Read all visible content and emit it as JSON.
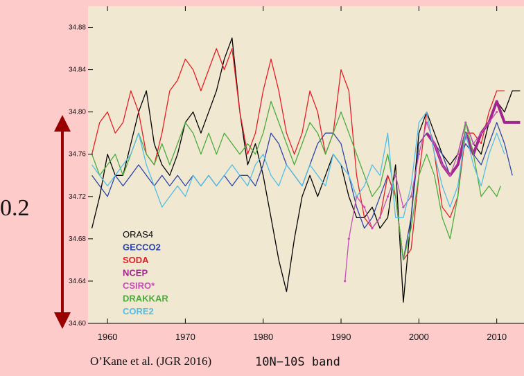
{
  "scale_label": "0.2",
  "citation": "O’Kane et al. (JGR 2016)",
  "band_label": "10N−10S band",
  "colors": {
    "page_bg": "#fecbcb",
    "plot_bg": "#f1e8d1",
    "arrow": "#990000"
  },
  "chart_data": {
    "type": "line",
    "title": "",
    "xlabel": "",
    "ylabel": "",
    "xlim": [
      1957.5,
      2013.5
    ],
    "ylim": [
      34.6,
      34.9
    ],
    "x_ticks": [
      1960,
      1970,
      1980,
      1990,
      2000,
      2010
    ],
    "y_ticks": [
      34.6,
      34.64,
      34.68,
      34.72,
      34.76,
      34.8,
      34.84,
      34.88
    ],
    "grid": false,
    "legend_position": "lower-left",
    "series": [
      {
        "name": "ORAS4",
        "color": "#000000",
        "x": [
          1958,
          1959,
          1960,
          1961,
          1962,
          1963,
          1964,
          1965,
          1966,
          1967,
          1968,
          1969,
          1970,
          1971,
          1972,
          1973,
          1974,
          1975,
          1976,
          1977,
          1978,
          1979,
          1980,
          1981,
          1982,
          1983,
          1984,
          1985,
          1986,
          1987,
          1988,
          1989,
          1990,
          1991,
          1992,
          1993,
          1994,
          1995,
          1996,
          1997,
          1998,
          1999,
          2000,
          2001,
          2002,
          2003,
          2004,
          2005,
          2006,
          2007,
          2008,
          2009,
          2010,
          2011,
          2012,
          2013
        ],
        "y": [
          34.69,
          34.72,
          34.76,
          34.74,
          34.74,
          34.77,
          34.8,
          34.82,
          34.77,
          34.75,
          34.74,
          34.76,
          34.79,
          34.8,
          34.78,
          34.8,
          34.82,
          34.85,
          34.87,
          34.8,
          34.75,
          34.77,
          34.74,
          34.7,
          34.66,
          34.63,
          34.68,
          34.72,
          34.74,
          34.72,
          34.74,
          34.76,
          34.75,
          34.72,
          34.7,
          34.7,
          34.71,
          34.69,
          34.7,
          34.75,
          34.62,
          34.7,
          34.78,
          34.8,
          34.78,
          34.76,
          34.75,
          34.76,
          34.79,
          34.77,
          34.76,
          34.79,
          34.81,
          34.8,
          34.82,
          34.82
        ]
      },
      {
        "name": "GECCO2",
        "color": "#2c45a8",
        "x": [
          1958,
          1959,
          1960,
          1961,
          1962,
          1963,
          1964,
          1965,
          1966,
          1967,
          1968,
          1969,
          1970,
          1971,
          1972,
          1973,
          1974,
          1975,
          1976,
          1977,
          1978,
          1979,
          1980,
          1981,
          1982,
          1983,
          1984,
          1985,
          1986,
          1987,
          1988,
          1989,
          1990,
          1991,
          1992,
          1993,
          1994,
          1995,
          1996,
          1997,
          1998,
          1999,
          2000,
          2001,
          2002,
          2003,
          2004,
          2005,
          2006,
          2007,
          2008,
          2009,
          2010,
          2011,
          2012
        ],
        "y": [
          34.74,
          34.73,
          34.72,
          34.74,
          34.73,
          34.74,
          34.75,
          34.74,
          34.73,
          34.74,
          34.73,
          34.74,
          34.73,
          34.74,
          34.73,
          34.74,
          34.73,
          34.74,
          34.73,
          34.74,
          34.74,
          34.73,
          34.75,
          34.78,
          34.77,
          34.75,
          34.74,
          34.73,
          34.75,
          34.77,
          34.78,
          34.78,
          34.77,
          34.74,
          34.71,
          34.69,
          34.7,
          34.72,
          34.74,
          34.72,
          34.66,
          34.7,
          34.77,
          34.78,
          34.77,
          34.76,
          34.74,
          34.75,
          34.77,
          34.76,
          34.75,
          34.77,
          34.79,
          34.77,
          34.74
        ]
      },
      {
        "name": "SODA",
        "color": "#e31e24",
        "x": [
          1958,
          1959,
          1960,
          1961,
          1962,
          1963,
          1964,
          1965,
          1966,
          1967,
          1968,
          1969,
          1970,
          1971,
          1972,
          1973,
          1974,
          1975,
          1976,
          1977,
          1978,
          1979,
          1980,
          1981,
          1982,
          1983,
          1984,
          1985,
          1986,
          1987,
          1988,
          1989,
          1990,
          1991,
          1992,
          1993,
          1994,
          1995,
          1996,
          1997,
          1998,
          1999,
          2000,
          2001,
          2002,
          2003,
          2004,
          2005,
          2006,
          2007,
          2008,
          2009,
          2010,
          2011
        ],
        "y": [
          34.76,
          34.79,
          34.8,
          34.78,
          34.79,
          34.82,
          34.8,
          34.76,
          34.75,
          34.78,
          34.82,
          34.83,
          34.85,
          34.84,
          34.82,
          34.84,
          34.86,
          34.84,
          34.86,
          34.8,
          34.76,
          34.78,
          34.82,
          34.85,
          34.82,
          34.78,
          34.76,
          34.78,
          34.82,
          34.8,
          34.76,
          34.78,
          34.84,
          34.82,
          34.74,
          34.7,
          34.69,
          34.7,
          34.74,
          34.72,
          34.66,
          34.67,
          34.74,
          34.8,
          34.76,
          34.71,
          34.7,
          34.72,
          34.78,
          34.78,
          34.77,
          34.8,
          34.82,
          34.82
        ]
      },
      {
        "name": "NCEP",
        "color": "#a0258e",
        "x": [
          2001,
          2002,
          2003,
          2004,
          2005,
          2006,
          2007,
          2008,
          2009,
          2010,
          2011,
          2012,
          2013
        ],
        "y": [
          34.78,
          34.77,
          34.75,
          34.74,
          34.75,
          34.78,
          34.76,
          34.78,
          34.79,
          34.81,
          34.79,
          34.79,
          34.79
        ]
      },
      {
        "name": "CSIRO*",
        "color": "#c24fb4",
        "x": [
          1990.5,
          1991,
          1992,
          1993,
          1994,
          1995,
          1996,
          1997,
          1998,
          1999,
          2000,
          2001,
          2002,
          2003,
          2004,
          2005,
          2006,
          2007,
          2008,
          2009,
          2010
        ],
        "y": [
          34.64,
          34.68,
          34.72,
          34.71,
          34.69,
          34.7,
          34.72,
          34.74,
          34.71,
          34.72,
          34.76,
          34.79,
          34.77,
          34.75,
          34.74,
          34.76,
          34.79,
          34.77,
          34.78,
          34.79,
          34.8
        ]
      },
      {
        "name": "DRAKKAR",
        "color": "#4aab3c",
        "x": [
          1958,
          1959,
          1960,
          1961,
          1962,
          1963,
          1964,
          1965,
          1966,
          1967,
          1968,
          1969,
          1970,
          1971,
          1972,
          1973,
          1974,
          1975,
          1976,
          1977,
          1978,
          1979,
          1980,
          1981,
          1982,
          1983,
          1984,
          1985,
          1986,
          1987,
          1988,
          1989,
          1990,
          1991,
          1992,
          1993,
          1994,
          1995,
          1996,
          1997,
          1998,
          1999,
          2000,
          2001,
          2002,
          2003,
          2004,
          2005,
          2006,
          2007,
          2008,
          2009,
          2010,
          2010.5
        ],
        "y": [
          34.76,
          34.74,
          34.75,
          34.76,
          34.74,
          34.76,
          34.78,
          34.76,
          34.75,
          34.77,
          34.75,
          34.77,
          34.79,
          34.78,
          34.76,
          34.78,
          34.76,
          34.78,
          34.77,
          34.76,
          34.77,
          34.76,
          34.78,
          34.81,
          34.79,
          34.77,
          34.75,
          34.77,
          34.79,
          34.78,
          34.76,
          34.78,
          34.8,
          34.78,
          34.76,
          34.74,
          34.72,
          34.73,
          34.76,
          34.72,
          34.66,
          34.69,
          34.74,
          34.76,
          34.74,
          34.7,
          34.68,
          34.72,
          34.79,
          34.76,
          34.72,
          34.73,
          34.72,
          34.73
        ]
      },
      {
        "name": "CORE2",
        "color": "#52bde5",
        "x": [
          1958,
          1959,
          1960,
          1961,
          1962,
          1963,
          1964,
          1965,
          1966,
          1967,
          1968,
          1969,
          1970,
          1971,
          1972,
          1973,
          1974,
          1975,
          1976,
          1977,
          1978,
          1979,
          1980,
          1981,
          1982,
          1983,
          1984,
          1985,
          1986,
          1987,
          1988,
          1989,
          1990,
          1991,
          1992,
          1993,
          1994,
          1995,
          1996,
          1997,
          1998,
          1999,
          2000,
          2001,
          2002,
          2003,
          2004,
          2005,
          2006,
          2007,
          2008,
          2009,
          2010,
          2011
        ],
        "y": [
          34.75,
          34.74,
          34.73,
          34.74,
          34.75,
          34.76,
          34.78,
          34.75,
          34.73,
          34.71,
          34.72,
          34.73,
          34.72,
          34.74,
          34.73,
          34.74,
          34.73,
          34.74,
          34.75,
          34.74,
          34.73,
          34.75,
          34.76,
          34.74,
          34.73,
          34.75,
          34.74,
          34.73,
          34.75,
          34.74,
          34.73,
          34.76,
          34.75,
          34.74,
          34.72,
          34.73,
          34.75,
          34.74,
          34.78,
          34.7,
          34.7,
          34.73,
          34.79,
          34.8,
          34.76,
          34.73,
          34.71,
          34.73,
          34.78,
          34.75,
          34.73,
          34.76,
          34.78,
          34.76
        ]
      }
    ]
  }
}
